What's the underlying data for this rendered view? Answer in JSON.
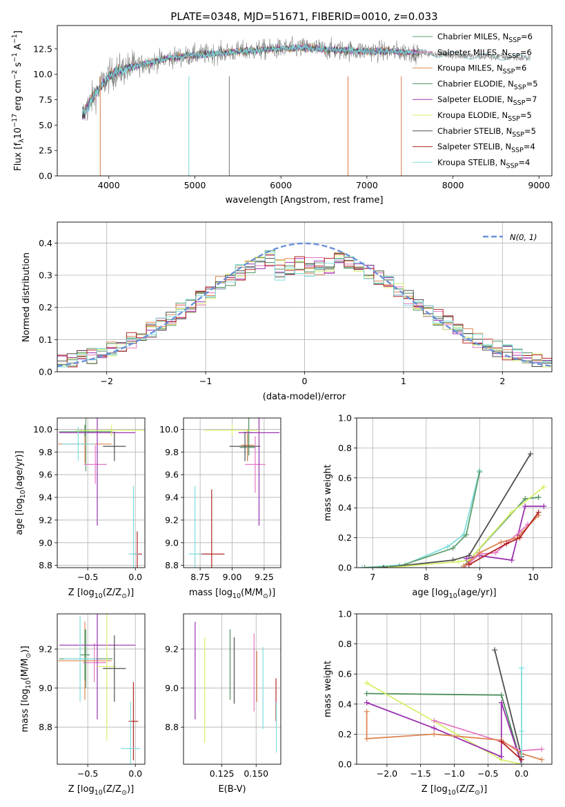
{
  "colors": {
    "model_colors": [
      "#5f9e6e",
      "#e377c2",
      "#dd8452",
      "#4c8f5b",
      "#9b30b0",
      "#d4f06a",
      "#4d4d4d",
      "#b22222",
      "#7fdcdc"
    ],
    "gauss_color": "#6a8fd8",
    "grid": "#b0b0b0",
    "data_gray": "#808080"
  },
  "models": [
    {
      "label": "Chabrier MILES, N",
      "sub": "SSP",
      "n": "=6",
      "color": "#5f9e6e"
    },
    {
      "label": "Salpeter MILES, N",
      "sub": "SSP",
      "n": "=6",
      "color": "#e377c2"
    },
    {
      "label": "Kroupa MILES, N",
      "sub": "SSP",
      "n": "=6",
      "color": "#dd8452"
    },
    {
      "label": "Chabrier ELODIE, N",
      "sub": "SSP",
      "n": "=5",
      "color": "#4c8f5b"
    },
    {
      "label": "Salpeter ELODIE, N",
      "sub": "SSP",
      "n": "=7",
      "color": "#9b30b0"
    },
    {
      "label": "Kroupa ELODIE, N",
      "sub": "SSP",
      "n": "=5",
      "color": "#d4f06a"
    },
    {
      "label": "Chabrier STELIB, N",
      "sub": "SSP",
      "n": "=5",
      "color": "#4d4d4d"
    },
    {
      "label": "Salpeter STELIB, N",
      "sub": "SSP",
      "n": "=4",
      "color": "#b22222"
    },
    {
      "label": "Kroupa STELIB, N",
      "sub": "SSP",
      "n": "=4",
      "color": "#7fdcdc"
    }
  ],
  "chart_data": [
    {
      "type": "line",
      "title": "PLATE=0348, MJD=51671, FIBERID=0010, z=0.033",
      "xlabel": "wavelength [Angstrom, rest frame]",
      "ylabel": "Flux [f",
      "ylabel_sub": "λ",
      "ylabel_rest": "10",
      "ylabel_sup": "−17",
      "ylabel_units": " erg cm",
      "ylabel_sup2": "−2",
      "ylabel_s": " s",
      "ylabel_sup3": "−1",
      "ylabel_a": " A",
      "ylabel_sup4": "−1",
      "ylabel_end": "]",
      "xlim": [
        3400,
        9150
      ],
      "ylim": [
        0,
        14.8
      ],
      "xticks": [
        4000,
        5000,
        6000,
        7000,
        8000,
        9000
      ],
      "yticks": [
        0.0,
        2.5,
        5.0,
        7.5,
        10.0,
        12.5
      ],
      "continuum": {
        "x": [
          3700,
          3800,
          3900,
          4000,
          4100,
          4300,
          4500,
          4700,
          5000,
          5300,
          5600,
          6000,
          6300,
          6600,
          7000,
          7400,
          7800,
          8200,
          8600,
          8900
        ],
        "y": [
          6.0,
          7.5,
          8.8,
          9.8,
          10.3,
          10.8,
          11.2,
          11.6,
          11.9,
          12.1,
          12.3,
          12.5,
          12.6,
          12.4,
          12.3,
          12.2,
          12.0,
          11.8,
          11.7,
          11.6
        ]
      },
      "drops": [
        {
          "x": 3900,
          "color": "#dd8452"
        },
        {
          "x": 4930,
          "color": "#7fdcdc"
        },
        {
          "x": 5400,
          "color": "#808080"
        },
        {
          "x": 6780,
          "color": "#dd8452"
        },
        {
          "x": 7400,
          "color": "#dd8452"
        }
      ]
    },
    {
      "type": "area",
      "xlabel": "(data-model)/error",
      "ylabel": "Normed distribution",
      "legend_label": "N(0, 1)",
      "xlim": [
        -2.5,
        2.5
      ],
      "ylim": [
        0,
        0.465
      ],
      "xticks": [
        -2,
        -1,
        0,
        1,
        2
      ],
      "yticks": [
        0.0,
        0.1,
        0.2,
        0.3,
        0.4
      ],
      "bins": 50
    },
    {
      "type": "scatter",
      "xlabel": "Z [log",
      "xlabel_sub": "10",
      "xlabel_rest": "(Z/Z",
      "xlabel_sub2": "⊙",
      "xlabel_end": ")]",
      "ylabel": "age  [log",
      "ylabel_sub": "10",
      "ylabel_rest": "(age/yr)]",
      "xlim": [
        -0.82,
        0.1
      ],
      "ylim": [
        8.78,
        10.1
      ],
      "xticks": [
        -0.5,
        0.0
      ],
      "yticks": [
        8.8,
        9.0,
        9.2,
        9.4,
        9.6,
        9.8,
        10.0
      ],
      "points": [
        {
          "x": -0.52,
          "y": 9.98,
          "xerr": 0.28,
          "yerr": 0.35,
          "color": "#5f9e6e"
        },
        {
          "x": -0.42,
          "y": 9.69,
          "xerr": 0.12,
          "yerr": 0.17,
          "color": "#e377c2"
        },
        {
          "x": -0.53,
          "y": 9.87,
          "xerr": 0.28,
          "yerr": 0.17,
          "color": "#dd8452"
        },
        {
          "x": -0.53,
          "y": 9.99,
          "xerr": 0.05,
          "yerr": 0.05,
          "color": "#4c8f5b"
        },
        {
          "x": -0.4,
          "y": 9.97,
          "xerr": 0.4,
          "yerr": 0.82,
          "color": "#9b30b0"
        },
        {
          "x": -0.25,
          "y": 9.99,
          "xerr": 0.38,
          "yerr": 0.05,
          "color": "#d4f06a"
        },
        {
          "x": -0.22,
          "y": 9.85,
          "xerr": 0.12,
          "yerr": 0.13,
          "color": "#4d4d4d"
        },
        {
          "x": 0.02,
          "y": 8.9,
          "xerr": 0.05,
          "yerr": 0.2,
          "color": "#b22222"
        },
        {
          "x": -0.6,
          "y": 9.87,
          "xerr": 0.17,
          "yerr": 0.15,
          "color": "#7fdcdc"
        },
        {
          "x": -0.02,
          "y": 8.9,
          "xerr": 0.05,
          "yerr": 0.6,
          "color": "#7fdcdc"
        }
      ]
    },
    {
      "type": "scatter",
      "xlabel": "mass [log",
      "xlabel_sub": "10",
      "xlabel_rest": "(M/M",
      "xlabel_sub2": "⊙",
      "xlabel_end": ")]",
      "xlim": [
        8.62,
        9.38
      ],
      "ylim": [
        8.78,
        10.1
      ],
      "xticks": [
        8.75,
        9.0,
        9.25
      ],
      "yticks": [
        8.8,
        9.0,
        9.2,
        9.4,
        9.6,
        9.8,
        10.0
      ],
      "points": [
        {
          "x": 9.12,
          "y": 9.84,
          "xerr": 0.06,
          "yerr": 0.12,
          "color": "#5f9e6e"
        },
        {
          "x": 9.18,
          "y": 9.69,
          "xerr": 0.08,
          "yerr": 0.25,
          "color": "#e377c2"
        },
        {
          "x": 9.12,
          "y": 9.86,
          "xerr": 0.05,
          "yerr": 0.14,
          "color": "#dd8452"
        },
        {
          "x": 9.13,
          "y": 9.97,
          "xerr": 0.03,
          "yerr": 0.2,
          "color": "#4c8f5b"
        },
        {
          "x": 9.21,
          "y": 9.97,
          "xerr": 0.16,
          "yerr": 0.82,
          "color": "#9b30b0"
        },
        {
          "x": 9.0,
          "y": 9.99,
          "xerr": 0.22,
          "yerr": 0.05,
          "color": "#d4f06a"
        },
        {
          "x": 9.1,
          "y": 9.85,
          "xerr": 0.12,
          "yerr": 0.13,
          "color": "#4d4d4d"
        },
        {
          "x": 8.84,
          "y": 8.9,
          "xerr": 0.1,
          "yerr": 0.57,
          "color": "#b22222"
        },
        {
          "x": 8.71,
          "y": 8.9,
          "xerr": 0.05,
          "yerr": 0.6,
          "color": "#7fdcdc"
        }
      ]
    },
    {
      "type": "line",
      "xlabel": "age  [log",
      "xlabel_sub": "10",
      "xlabel_rest": "(age/yr)]",
      "ylabel": "mass weight",
      "xlim": [
        6.7,
        10.35
      ],
      "ylim": [
        0,
        1.0
      ],
      "xticks": [
        7,
        8,
        9,
        10
      ],
      "yticks": [
        0.0,
        0.2,
        0.4,
        0.6,
        0.8,
        1.0
      ],
      "series": [
        {
          "color": "#7fdcdc",
          "x": [
            6.8,
            7.6,
            8.4,
            8.7,
            9.0
          ],
          "y": [
            0.0,
            0.02,
            0.14,
            0.22,
            0.65
          ]
        },
        {
          "color": "#5f9e6e",
          "x": [
            6.85,
            7.5,
            8.5,
            8.75,
            9.0
          ],
          "y": [
            0.0,
            0.01,
            0.13,
            0.22,
            0.64
          ]
        },
        {
          "color": "#4d4d4d",
          "x": [
            7.2,
            8.5,
            8.8,
            9.95
          ],
          "y": [
            0.0,
            0.05,
            0.08,
            0.76
          ]
        },
        {
          "color": "#4c8f5b",
          "x": [
            8.7,
            9.85,
            10.1
          ],
          "y": [
            0.01,
            0.46,
            0.47
          ]
        },
        {
          "color": "#d4f06a",
          "x": [
            7.3,
            8.6,
            8.8,
            9.6,
            10.2
          ],
          "y": [
            0.0,
            0.04,
            0.05,
            0.37,
            0.54
          ]
        },
        {
          "color": "#9b30b0",
          "x": [
            8.75,
            9.0,
            9.6,
            9.85,
            10.2
          ],
          "y": [
            0.06,
            0.08,
            0.05,
            0.41,
            0.41
          ]
        },
        {
          "color": "#e377c2",
          "x": [
            8.7,
            9.0,
            9.3,
            9.75,
            9.9
          ],
          "y": [
            0.0,
            0.09,
            0.1,
            0.24,
            0.29
          ]
        },
        {
          "color": "#dd8452",
          "x": [
            8.7,
            9.0,
            9.4,
            9.7,
            10.1
          ],
          "y": [
            0.01,
            0.1,
            0.17,
            0.2,
            0.35
          ]
        },
        {
          "color": "#b22222",
          "x": [
            8.8,
            9.5,
            9.75,
            10.1
          ],
          "y": [
            0.02,
            0.16,
            0.2,
            0.37
          ]
        }
      ]
    },
    {
      "type": "scatter",
      "xlabel": "Z [log",
      "xlabel_sub": "10",
      "xlabel_rest": "(Z/Z",
      "xlabel_sub2": "⊙",
      "xlabel_end": ")]",
      "ylabel": "mass [log",
      "ylabel_sub": "10",
      "ylabel_rest": "(M/M",
      "ylabel_sub2": "⊙",
      "ylabel_end": ")]",
      "xlim": [
        -0.82,
        0.1
      ],
      "ylim": [
        8.61,
        9.38
      ],
      "xticks": [
        -0.5,
        0.0
      ],
      "yticks": [
        8.8,
        9.0,
        9.2
      ],
      "points": [
        {
          "x": -0.52,
          "y": 9.15,
          "xerr": 0.28,
          "yerr": 0.15,
          "color": "#5f9e6e"
        },
        {
          "x": -0.43,
          "y": 9.13,
          "xerr": 0.12,
          "yerr": 0.1,
          "color": "#e377c2"
        },
        {
          "x": -0.53,
          "y": 9.14,
          "xerr": 0.28,
          "yerr": 0.2,
          "color": "#dd8452"
        },
        {
          "x": -0.53,
          "y": 9.17,
          "xerr": 0.05,
          "yerr": 0.13,
          "color": "#4c8f5b"
        },
        {
          "x": -0.4,
          "y": 9.22,
          "xerr": 0.4,
          "yerr": 0.38,
          "color": "#9b30b0"
        },
        {
          "x": -0.3,
          "y": 9.11,
          "xerr": 0.1,
          "yerr": 0.38,
          "color": "#d4f06a"
        },
        {
          "x": -0.22,
          "y": 9.1,
          "xerr": 0.12,
          "yerr": 0.17,
          "color": "#4d4d4d"
        },
        {
          "x": -0.02,
          "y": 8.83,
          "xerr": 0.05,
          "yerr": 0.2,
          "color": "#b22222"
        },
        {
          "x": -0.58,
          "y": 9.15,
          "xerr": 0.17,
          "yerr": 0.22,
          "color": "#7fdcdc"
        },
        {
          "x": -0.05,
          "y": 8.69,
          "xerr": 0.1,
          "yerr": 0.24,
          "color": "#7fdcdc"
        }
      ]
    },
    {
      "type": "scatter",
      "xlabel": "E(B-V)",
      "xlim": [
        0.097,
        0.168
      ],
      "ylim": [
        8.61,
        9.38
      ],
      "xticks": [
        0.125,
        0.15
      ],
      "yticks": [
        8.8,
        9.0,
        9.2
      ],
      "points": [
        {
          "x": 0.1055,
          "y": 9.09,
          "yerr": 0.25,
          "color": "#9b30b0"
        },
        {
          "x": 0.1125,
          "y": 8.99,
          "yerr": 0.27,
          "color": "#d4f06a"
        },
        {
          "x": 0.131,
          "y": 9.12,
          "yerr": 0.18,
          "color": "#4c8f5b"
        },
        {
          "x": 0.134,
          "y": 9.09,
          "yerr": 0.17,
          "color": "#4d4d4d"
        },
        {
          "x": 0.1485,
          "y": 9.08,
          "yerr": 0.2,
          "color": "#e377c2"
        },
        {
          "x": 0.1505,
          "y": 9.06,
          "yerr": 0.13,
          "color": "#dd8452"
        },
        {
          "x": 0.155,
          "y": 9.0,
          "yerr": 0.21,
          "color": "#7fdcdc"
        },
        {
          "x": 0.1645,
          "y": 8.94,
          "yerr": 0.11,
          "color": "#b22222"
        },
        {
          "x": 0.1648,
          "y": 8.8,
          "yerr": 0.13,
          "color": "#7fdcdc"
        }
      ]
    },
    {
      "type": "line",
      "xlabel": "Z [log",
      "xlabel_sub": "10",
      "xlabel_rest": "(Z/Z",
      "xlabel_sub2": "⊙",
      "xlabel_end": ")]",
      "ylabel": "mass weight",
      "xlim": [
        -2.45,
        0.45
      ],
      "ylim": [
        0,
        1.0
      ],
      "xticks": [
        -2.0,
        -1.5,
        -1.0,
        -0.5,
        0.0
      ],
      "yticks": [
        0.0,
        0.2,
        0.4,
        0.6,
        0.8,
        1.0
      ],
      "series": [
        {
          "color": "#4c8f5b",
          "x": [
            -2.3,
            -0.3,
            0.0
          ],
          "y": [
            0.47,
            0.46,
            0.0
          ]
        },
        {
          "color": "#d4f06a",
          "x": [
            -2.3,
            -0.3,
            0.0
          ],
          "y": [
            0.54,
            0.03,
            0.0
          ]
        },
        {
          "color": "#4d4d4d",
          "x": [
            -0.4,
            0.0
          ],
          "y": [
            0.76,
            0.05
          ]
        },
        {
          "color": "#9b30b0",
          "x": [
            -2.3,
            -1.3,
            -0.3,
            -0.3,
            0.0
          ],
          "y": [
            0.41,
            0.24,
            0.05,
            0.41,
            0.0
          ]
        },
        {
          "color": "#e377c2",
          "x": [
            -1.3,
            -0.3,
            0.0,
            0.3
          ],
          "y": [
            0.29,
            0.15,
            0.09,
            0.1
          ]
        },
        {
          "color": "#dd8452",
          "x": [
            -2.3,
            -2.3,
            -1.3,
            -0.3,
            0.0,
            0.3
          ],
          "y": [
            0.35,
            0.17,
            0.2,
            0.16,
            0.07,
            0.03
          ]
        },
        {
          "color": "#7fdcdc",
          "x": [
            0.0,
            0.0,
            0.0
          ],
          "y": [
            0.64,
            0.22,
            0.0
          ]
        },
        {
          "color": "#b22222",
          "x": [
            -0.3,
            0.0
          ],
          "y": [
            0.15,
            0.03
          ]
        }
      ]
    }
  ]
}
